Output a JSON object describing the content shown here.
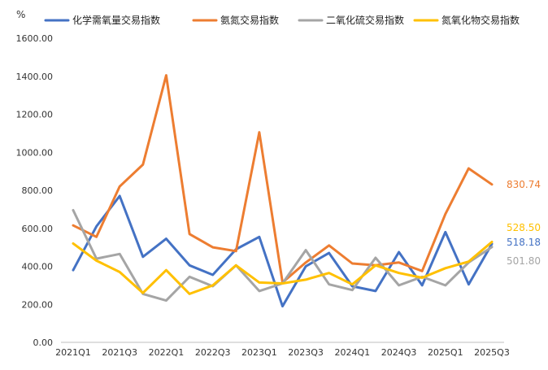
{
  "chart_data": {
    "type": "line",
    "unit_label": "%",
    "ylim": [
      0,
      1600
    ],
    "yticks": [
      "0.00",
      "200.00",
      "400.00",
      "600.00",
      "800.00",
      "1000.00",
      "1200.00",
      "1400.00",
      "1600.00"
    ],
    "xtick_labels": [
      "2021Q1",
      "2021Q3",
      "2022Q1",
      "2022Q3",
      "2023Q1",
      "2023Q3",
      "2024Q1",
      "2024Q3",
      "2025Q1",
      "2025Q3"
    ],
    "x": [
      "2021Q1",
      "2021Q2",
      "2021Q3",
      "2021Q4",
      "2022Q1",
      "2022Q2",
      "2022Q3",
      "2022Q4",
      "2023Q1",
      "2023Q2",
      "2023Q3",
      "2023Q4",
      "2024Q1",
      "2024Q2",
      "2024Q3",
      "2024Q4",
      "2025Q1",
      "2025Q2",
      "2025Q3"
    ],
    "grid": "none",
    "legend_position": "top",
    "series": [
      {
        "name": "化学需氧量交易指数",
        "color": "#4472C4",
        "values": [
          380,
          610,
          770,
          450,
          545,
          405,
          355,
          490,
          555,
          190,
          400,
          470,
          295,
          270,
          475,
          300,
          580,
          305,
          518.18
        ],
        "end_label": "518.18"
      },
      {
        "name": "氨氮交易指数",
        "color": "#ED7D31",
        "values": [
          615,
          555,
          820,
          935,
          1405,
          570,
          500,
          480,
          1105,
          315,
          420,
          510,
          415,
          405,
          420,
          375,
          675,
          915,
          830.74
        ],
        "end_label": "830.74"
      },
      {
        "name": "二氧化硫交易指数",
        "color": "#A5A5A5",
        "values": [
          695,
          440,
          465,
          255,
          220,
          345,
          295,
          405,
          270,
          310,
          485,
          305,
          275,
          445,
          300,
          345,
          300,
          420,
          501.8
        ],
        "end_label": "501.80"
      },
      {
        "name": "氮氧化物交易指数",
        "color": "#FFC000",
        "values": [
          520,
          430,
          370,
          260,
          380,
          255,
          300,
          405,
          315,
          310,
          330,
          365,
          305,
          405,
          365,
          340,
          390,
          425,
          528.5
        ],
        "end_label": "528.50"
      }
    ]
  }
}
